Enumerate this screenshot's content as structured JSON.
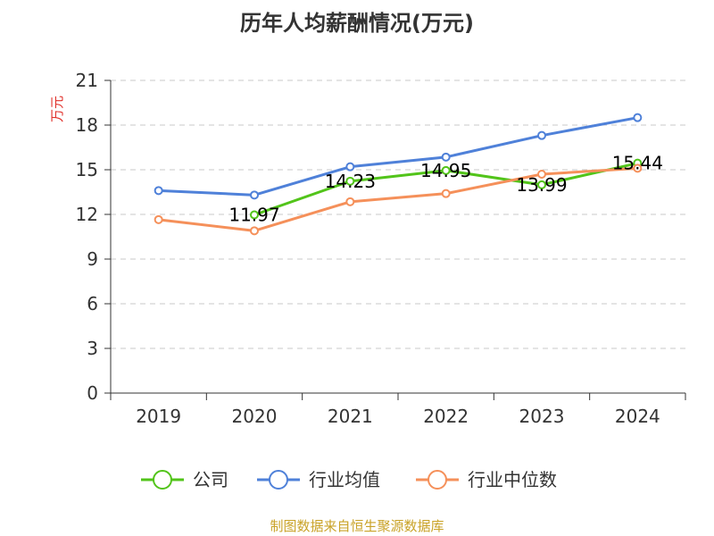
{
  "chart_data": {
    "type": "line",
    "title": "历年人均薪酬情况(万元)",
    "ylabel": "万元",
    "xlabel": "",
    "categories": [
      "2019",
      "2020",
      "2021",
      "2022",
      "2023",
      "2024"
    ],
    "ylim": [
      0,
      21
    ],
    "yticks": [
      0,
      3,
      6,
      9,
      12,
      15,
      18,
      21
    ],
    "grid": true,
    "legend_position": "bottom",
    "series": [
      {
        "name": "公司",
        "color": "#52c41a",
        "values": [
          null,
          11.97,
          14.23,
          14.95,
          13.99,
          15.44
        ],
        "labels": [
          null,
          "11.97",
          "14.23",
          "14.95",
          "13.99",
          "15.44"
        ]
      },
      {
        "name": "行业均值",
        "color": "#4f81d9",
        "values": [
          13.6,
          13.3,
          15.2,
          15.85,
          17.3,
          18.5
        ]
      },
      {
        "name": "行业中位数",
        "color": "#f5905a",
        "values": [
          11.65,
          10.9,
          12.85,
          13.4,
          14.7,
          15.1
        ]
      }
    ]
  },
  "footer": {
    "source": "制图数据来自恒生聚源数据库"
  }
}
